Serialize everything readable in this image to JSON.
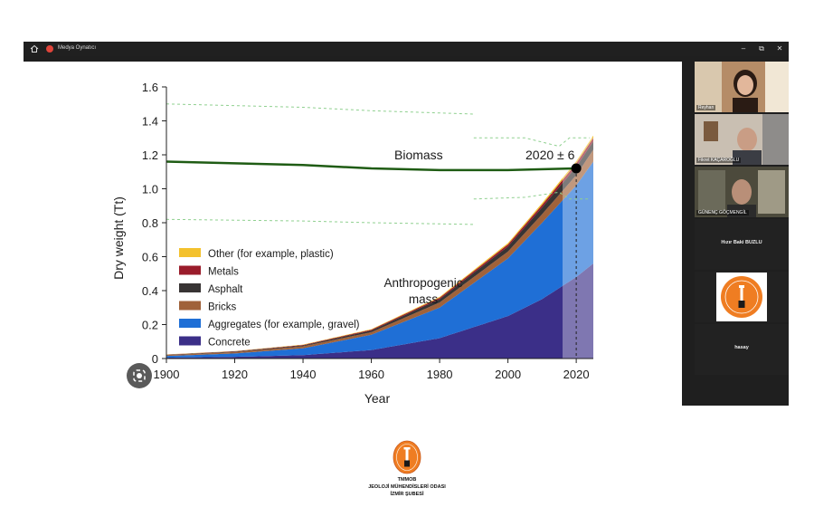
{
  "window": {
    "title": "Medya Oynatıcı",
    "controls": {
      "minimize": "–",
      "maximize": "⧉",
      "close": "✕"
    }
  },
  "participants": [
    {
      "name": "Reyhan",
      "has_video": true
    },
    {
      "name": "Fikret KAÇAROĞLU",
      "has_video": true
    },
    {
      "name": "GÜNENÇ GÖÇMENGİL",
      "has_video": true
    },
    {
      "name": "Hızır Baki BUZLU",
      "has_video": false
    },
    {
      "name": "",
      "has_video": false,
      "logo": true
    },
    {
      "name": "hasay",
      "has_video": false
    }
  ],
  "footer": {
    "line1": "TMMOB",
    "line2": "JEOLOJİ MÜHENDİSLERİ ODASI",
    "line3": "İZMİR ŞUBESİ"
  },
  "colors": {
    "biomass": "#1f5c14",
    "concrete": "#3b2f88",
    "aggregates": "#1f6fd6",
    "bricks": "#a0623a",
    "asphalt": "#383434",
    "metals": "#9a1c2b",
    "other": "#f3c12d"
  },
  "chart_data": {
    "type": "area",
    "title": "",
    "xlabel": "Year",
    "ylabel": "Dry weight (Tt)",
    "xlim": [
      1900,
      2025
    ],
    "ylim": [
      0,
      1.6
    ],
    "x_ticks": [
      1900,
      1920,
      1940,
      1960,
      1980,
      2000,
      2020
    ],
    "y_ticks": [
      "0",
      "0.2",
      "0.4",
      "0.6",
      "0.8",
      "1.0",
      "1.2",
      "1.4",
      "1.6"
    ],
    "x": [
      1900,
      1920,
      1940,
      1960,
      1980,
      2000,
      2010,
      2020,
      2025
    ],
    "series": [
      {
        "name": "Concrete",
        "values": [
          0.005,
          0.01,
          0.02,
          0.05,
          0.12,
          0.25,
          0.35,
          0.48,
          0.56
        ]
      },
      {
        "name": "Aggregates (for example, gravel)",
        "values": [
          0.01,
          0.02,
          0.04,
          0.09,
          0.18,
          0.34,
          0.45,
          0.54,
          0.6
        ]
      },
      {
        "name": "Bricks",
        "values": [
          0.005,
          0.008,
          0.012,
          0.015,
          0.03,
          0.04,
          0.05,
          0.06,
          0.07
        ]
      },
      {
        "name": "Asphalt",
        "values": [
          0.002,
          0.003,
          0.005,
          0.01,
          0.02,
          0.03,
          0.04,
          0.05,
          0.05
        ]
      },
      {
        "name": "Metals",
        "values": [
          0.001,
          0.002,
          0.003,
          0.005,
          0.008,
          0.012,
          0.015,
          0.02,
          0.02
        ]
      },
      {
        "name": "Other (for example, plastic)",
        "values": [
          0.001,
          0.001,
          0.002,
          0.003,
          0.005,
          0.008,
          0.01,
          0.012,
          0.013
        ]
      }
    ],
    "biomass": {
      "name": "Biomass",
      "x": [
        1900,
        1920,
        1940,
        1960,
        1980,
        2000,
        2020
      ],
      "values": [
        1.16,
        1.15,
        1.14,
        1.12,
        1.11,
        1.11,
        1.12
      ]
    },
    "annotations": {
      "biomass_label": "Biomass",
      "anthropogenic_line1": "Anthropogenic",
      "anthropogenic_line2": "mass",
      "crossover": "2020 ± 6"
    },
    "legend_order": [
      "Other (for example, plastic)",
      "Metals",
      "Asphalt",
      "Bricks",
      "Aggregates (for example, gravel)",
      "Concrete"
    ]
  }
}
